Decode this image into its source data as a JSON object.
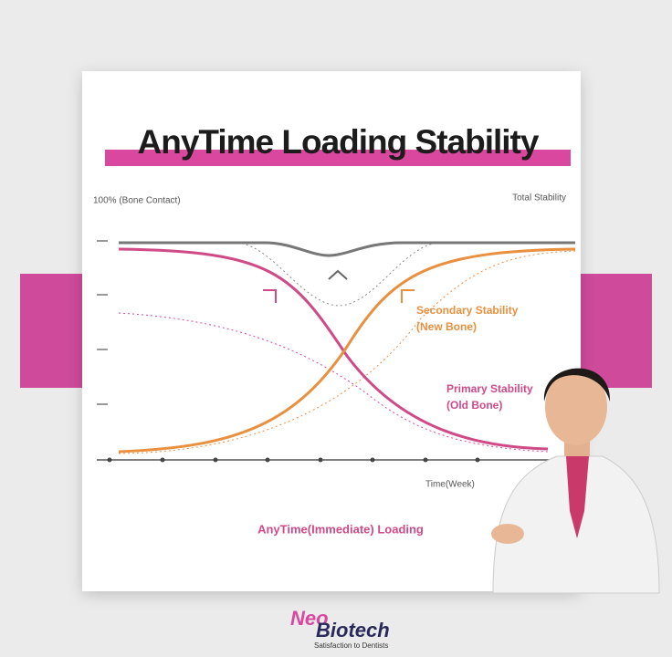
{
  "chart": {
    "title": "AnyTime Loading Stability",
    "y_label": "100% (Bone Contact)",
    "total_label": "Total Stability",
    "secondary_label": [
      "Secondary Stability",
      "(New Bone)"
    ],
    "primary_label": [
      "Primary Stability",
      "(Old Bone)"
    ],
    "x_label": "Time(Week)",
    "caption": "AnyTime(Immediate) Loading"
  },
  "logo": {
    "line1": "Neo",
    "line2": "Biotech",
    "tagline": "Satisfaction to Dentists"
  }
}
